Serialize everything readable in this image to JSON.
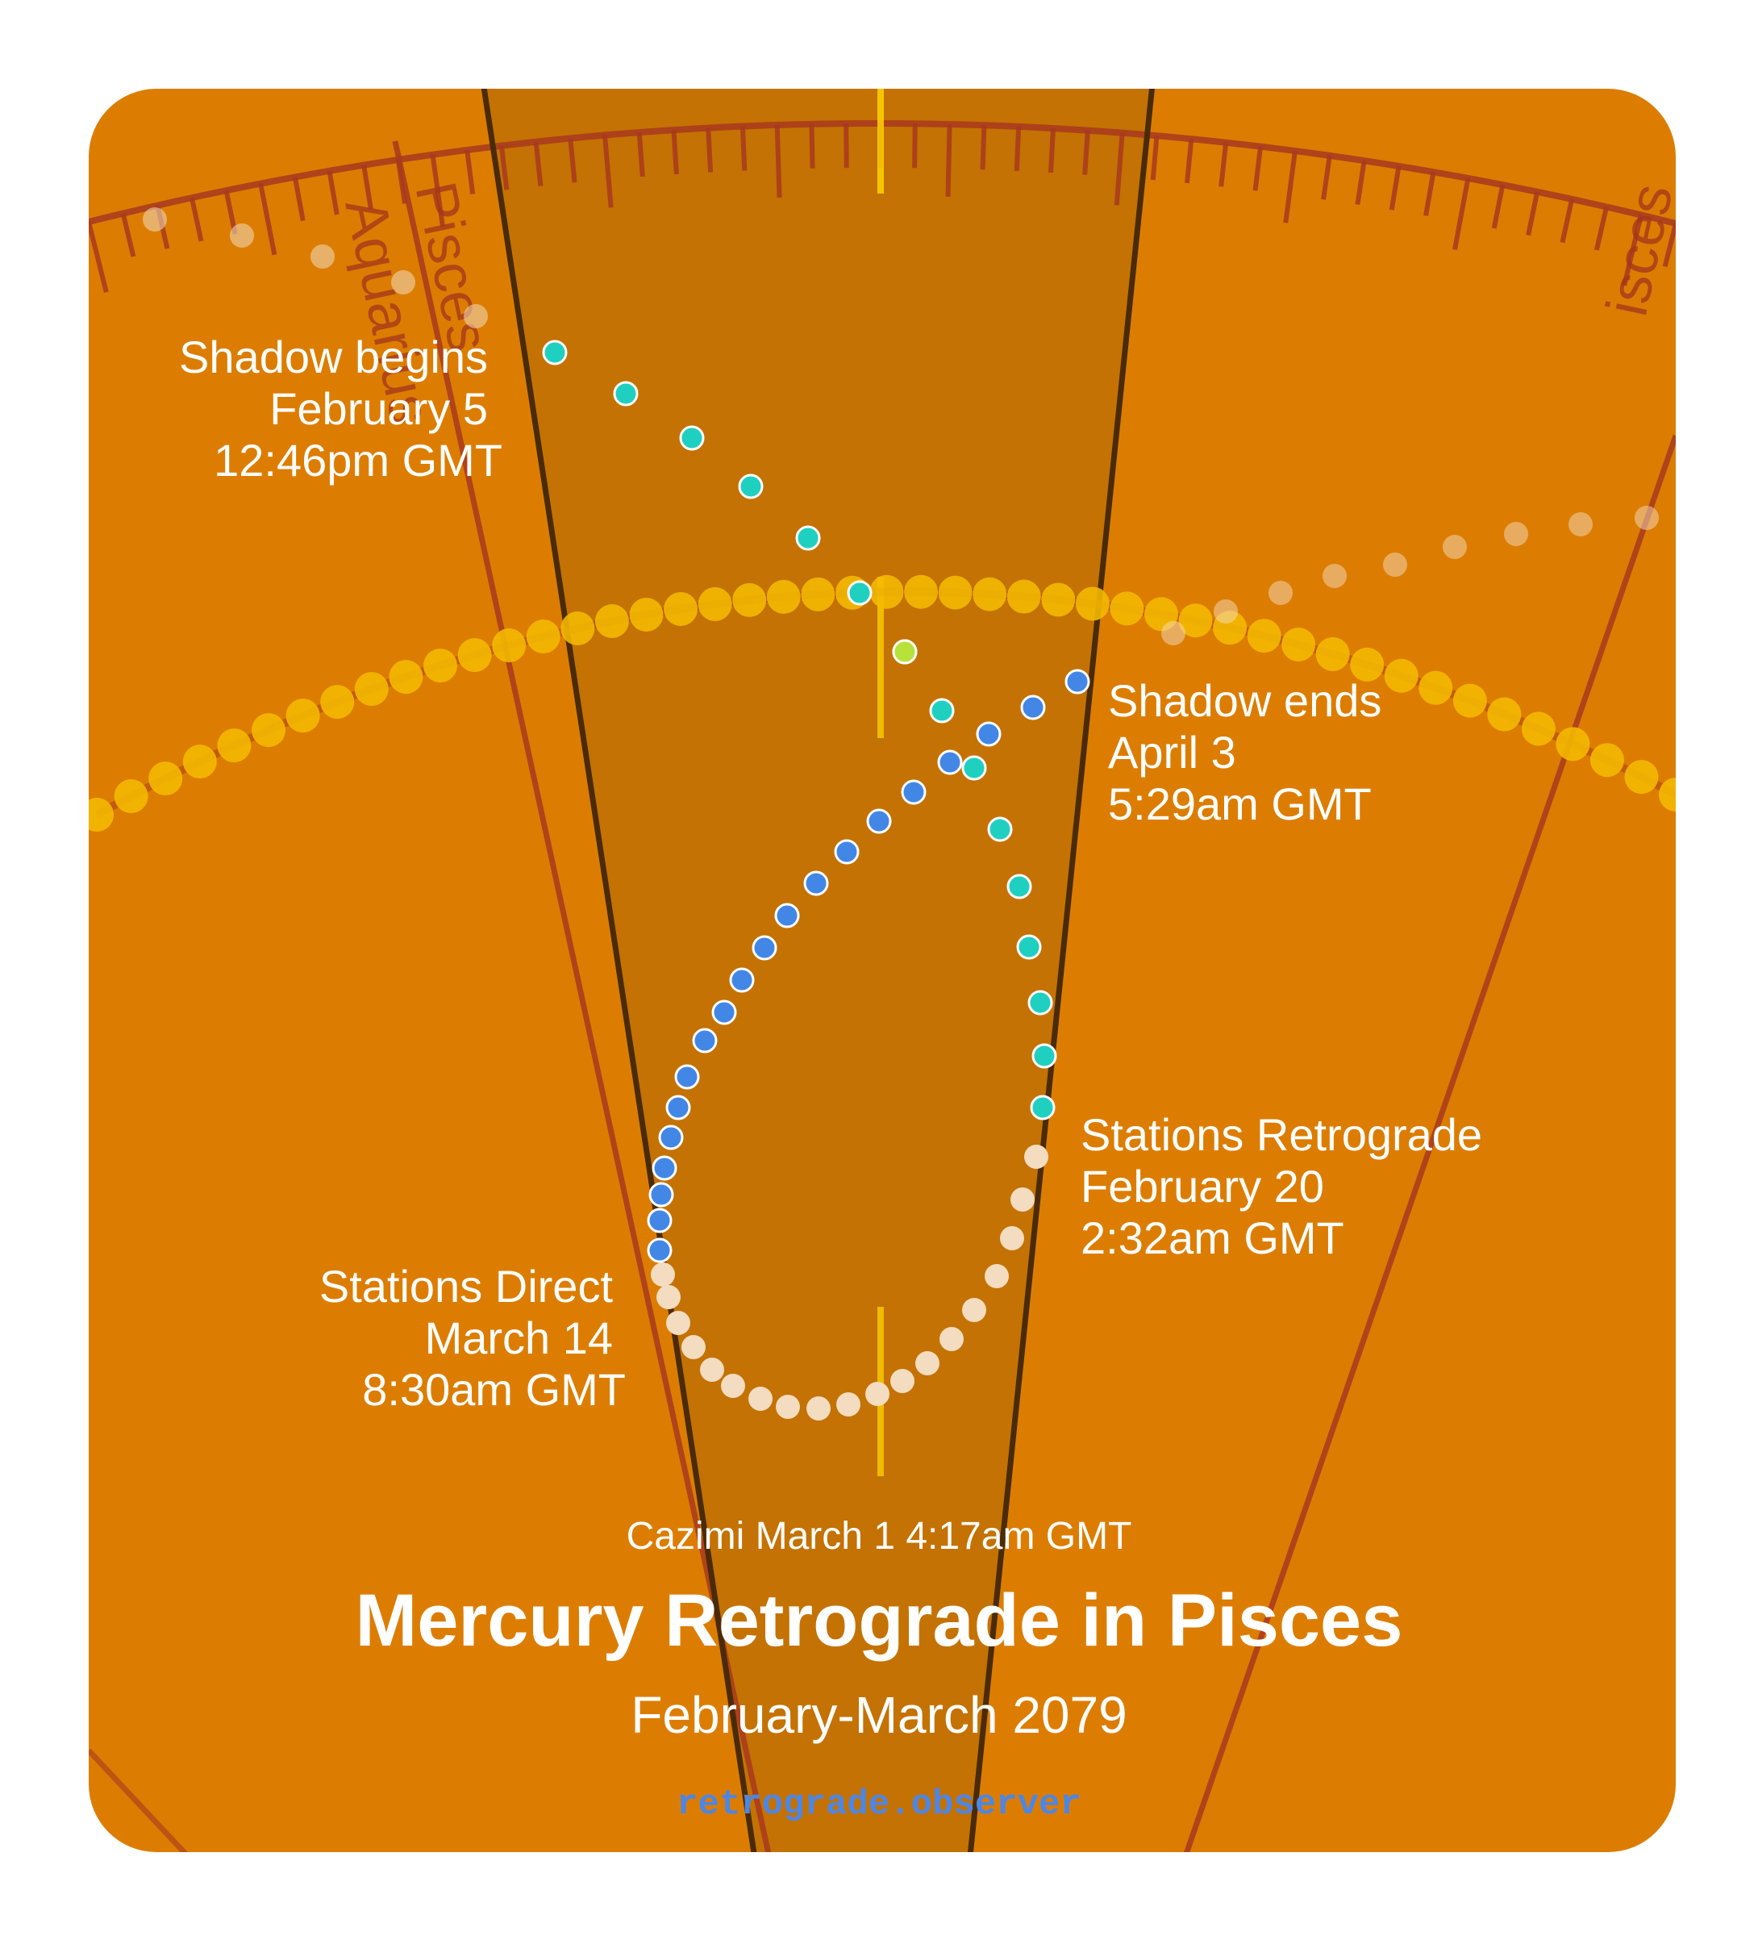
{
  "labels": {
    "shadow_begins": [
      "Shadow begins",
      "February 5",
      "12:46pm GMT"
    ],
    "shadow_ends": [
      "Shadow ends",
      "April 3",
      "5:29am GMT"
    ],
    "stations_retrograde": [
      "Stations Retrograde",
      "February 20",
      "2:32am GMT"
    ],
    "stations_direct": [
      "Stations Direct",
      "March 14",
      "8:30am GMT"
    ],
    "cazimi": "Cazimi March 1 4:17am GMT",
    "title": "Mercury Retrograde in Pisces",
    "subtitle": "February-March 2079",
    "site": "retrograde.observer"
  },
  "zodiac": {
    "pisces": "Pisces",
    "aquarius": "Aquarius",
    "pisces_right": "isces"
  },
  "colors": {
    "background": "#dc7d02",
    "shadow_zone": "#c47203",
    "boundary_lines": "#a8381f",
    "shadow_edges": "#4a2b08",
    "sun_path": "#f5bb00",
    "shadow_phase_dots": "#1fd0c0",
    "retrograde_dots": "#f3dcc0",
    "post_shadow_dots": "#4387e6",
    "site_text": "#4c86e6"
  }
}
